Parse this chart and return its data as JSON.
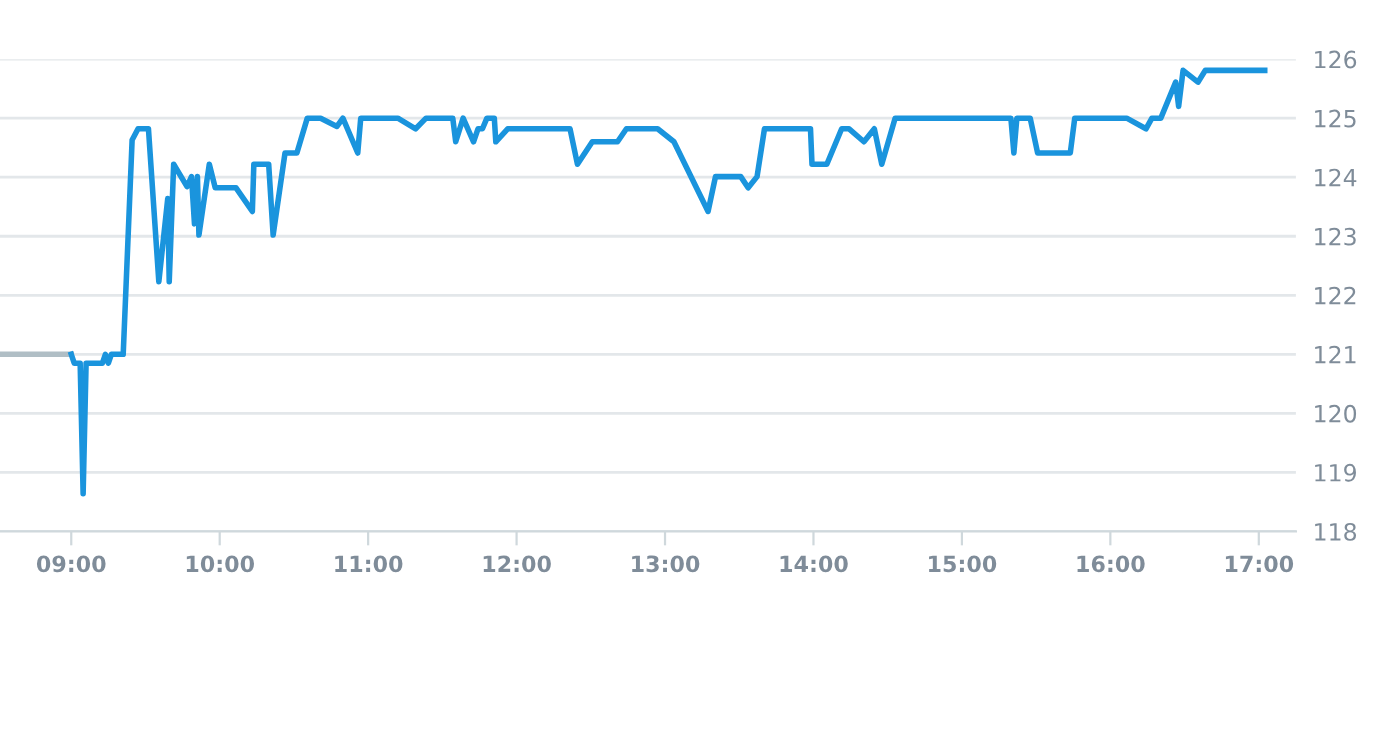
{
  "chart_data": {
    "type": "line",
    "xlim": [
      8.52,
      17.25
    ],
    "ylim": [
      118,
      126
    ],
    "xticks": [
      {
        "value": 9,
        "label": "09:00"
      },
      {
        "value": 10,
        "label": "10:00"
      },
      {
        "value": 11,
        "label": "11:00"
      },
      {
        "value": 12,
        "label": "12:00"
      },
      {
        "value": 13,
        "label": "13:00"
      },
      {
        "value": 14,
        "label": "14:00"
      },
      {
        "value": 15,
        "label": "15:00"
      },
      {
        "value": 16,
        "label": "16:00"
      },
      {
        "value": 17,
        "label": "17:00"
      }
    ],
    "yticks": [
      118,
      119,
      120,
      121,
      122,
      123,
      124,
      125,
      126
    ],
    "grid": "y",
    "series": [
      {
        "color": "#b0bec5",
        "x": [
          8.52,
          9.0
        ],
        "values": [
          121.0,
          121.0
        ]
      },
      {
        "color": "#1a94dd",
        "x": [
          9.0,
          9.02,
          9.06,
          9.08,
          9.1,
          9.21,
          9.23,
          9.25,
          9.27,
          9.35,
          9.41,
          9.45,
          9.52,
          9.59,
          9.65,
          9.66,
          9.69,
          9.78,
          9.81,
          9.83,
          9.85,
          9.86,
          9.93,
          9.97,
          10.11,
          10.22,
          10.23,
          10.33,
          10.36,
          10.44,
          10.52,
          10.59,
          10.68,
          10.79,
          10.83,
          10.93,
          10.95,
          11.2,
          11.32,
          11.39,
          11.57,
          11.59,
          11.64,
          11.71,
          11.74,
          11.77,
          11.8,
          11.85,
          11.86,
          11.94,
          12.36,
          12.41,
          12.51,
          12.68,
          12.74,
          12.95,
          13.06,
          13.29,
          13.34,
          13.51,
          13.56,
          13.62,
          13.67,
          13.98,
          13.99,
          14.09,
          14.19,
          14.24,
          14.34,
          14.41,
          14.46,
          14.55,
          15.33,
          15.35,
          15.37,
          15.46,
          15.51,
          15.73,
          15.76,
          16.11,
          16.24,
          16.28,
          16.34,
          16.44,
          16.46,
          16.49,
          16.59,
          16.64,
          17.04
        ],
        "values": [
          121.0,
          120.85,
          120.85,
          118.64,
          120.85,
          120.85,
          121.0,
          120.85,
          121.0,
          121.0,
          124.63,
          124.82,
          124.82,
          122.23,
          123.64,
          122.23,
          124.22,
          123.84,
          124.01,
          123.21,
          124.01,
          123.02,
          124.22,
          123.82,
          123.82,
          123.42,
          124.22,
          124.22,
          123.02,
          124.41,
          124.41,
          125.0,
          125.0,
          124.86,
          125.0,
          124.41,
          125.0,
          125.0,
          124.82,
          125.0,
          125.0,
          124.6,
          125.0,
          124.6,
          124.82,
          124.82,
          125.0,
          125.0,
          124.6,
          124.82,
          124.82,
          124.22,
          124.6,
          124.6,
          124.82,
          124.82,
          124.6,
          123.42,
          124.01,
          124.01,
          123.82,
          124.01,
          124.82,
          124.82,
          124.22,
          124.22,
          124.82,
          124.82,
          124.6,
          124.82,
          124.22,
          125.0,
          125.0,
          124.41,
          125.0,
          125.0,
          124.41,
          124.41,
          125.0,
          125.0,
          124.82,
          125.0,
          125.0,
          125.61,
          125.2,
          125.81,
          125.61,
          125.81,
          125.81
        ]
      }
    ]
  }
}
